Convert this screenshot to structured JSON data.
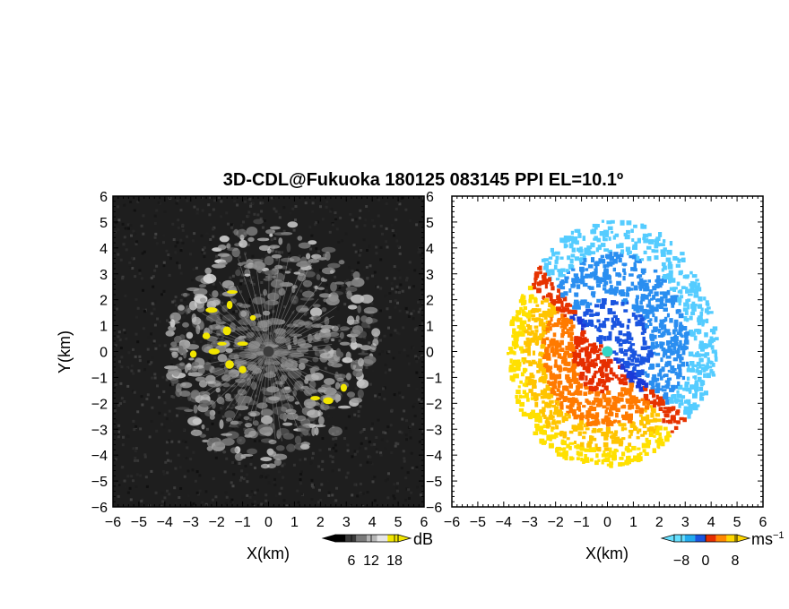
{
  "chart_data": {
    "title": "3D-CDL@Fukuoka 180125 083145 PPI EL=10.1º",
    "panels": [
      {
        "id": "reflectivity",
        "type": "heatmap",
        "xlabel": "X(km)",
        "ylabel": "Y(km)",
        "xlim": [
          -6,
          6
        ],
        "ylim": [
          -6,
          6
        ],
        "x_ticks": [
          -6,
          -5,
          -4,
          -3,
          -2,
          -1,
          0,
          1,
          2,
          3,
          4,
          5,
          6
        ],
        "y_ticks": [
          -6,
          -5,
          -4,
          -3,
          -2,
          -1,
          0,
          1,
          2,
          3,
          4,
          5,
          6
        ],
        "colorbar": {
          "unit": "dB",
          "ticks": [
            6,
            12,
            18
          ],
          "colors": [
            "#000000",
            "#3a3a3a",
            "#7a7a7a",
            "#b5b5b5",
            "#e6e6e6",
            "#f2e600"
          ]
        }
      },
      {
        "id": "doppler-velocity",
        "type": "heatmap",
        "xlabel": "X(km)",
        "ylabel": "",
        "xlim": [
          -6,
          6
        ],
        "ylim": [
          -6,
          6
        ],
        "x_ticks": [
          -6,
          -5,
          -4,
          -3,
          -2,
          -1,
          0,
          1,
          2,
          3,
          4,
          5,
          6
        ],
        "y_ticks": [
          -6,
          -5,
          -4,
          -3,
          -2,
          -1,
          0,
          1,
          2,
          3,
          4,
          5,
          6
        ],
        "colorbar": {
          "unit": "ms",
          "unit_exponent": "−1",
          "ticks": [
            "−8",
            "0",
            "8"
          ],
          "colors": [
            "#66e0ff",
            "#22aaee",
            "#1a55e0",
            "#e62e00",
            "#ff8800",
            "#ffd700"
          ]
        }
      }
    ]
  }
}
